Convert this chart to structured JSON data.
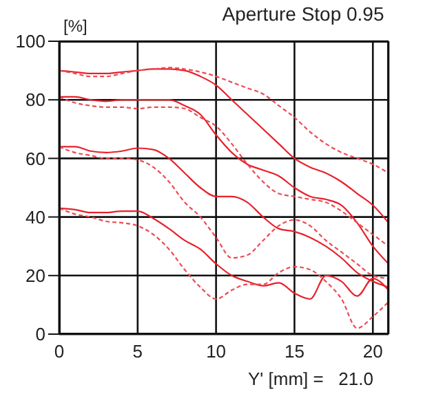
{
  "chart_data": {
    "type": "line",
    "title": "Aperture Stop 0.95",
    "ylabel": "[%]",
    "xlabel": "Y' [mm] =   21.0",
    "x": [
      0,
      1,
      2,
      3,
      4,
      5,
      6,
      7,
      8,
      9,
      10,
      11,
      12,
      13,
      14,
      15,
      16,
      17,
      18,
      19,
      20,
      21
    ],
    "series": [
      {
        "color": "#e8202a",
        "line_style": "solid",
        "values": [
          90,
          89.5,
          89,
          89,
          89.5,
          90,
          90.5,
          90.5,
          90,
          88,
          85,
          80,
          75,
          70,
          65,
          60,
          57,
          55,
          52,
          48,
          44,
          38
        ]
      },
      {
        "color": "#ec4a52",
        "line_style": "dashed",
        "values": [
          90,
          89,
          88,
          88,
          89,
          90,
          90.5,
          91,
          90.5,
          89.5,
          88,
          86,
          84,
          82,
          78,
          74,
          69,
          65,
          62,
          60,
          58,
          55
        ]
      },
      {
        "color": "#e8202a",
        "line_style": "solid",
        "values": [
          81,
          81,
          80,
          79.5,
          80,
          80,
          80,
          80,
          78,
          75,
          68,
          62,
          58,
          56,
          54,
          50,
          47,
          46,
          44,
          38,
          30,
          24
        ]
      },
      {
        "color": "#ec4a52",
        "line_style": "dashed",
        "values": [
          81,
          79,
          78,
          77.5,
          77.5,
          77,
          77.5,
          77.5,
          77,
          74,
          71,
          65,
          58,
          52,
          48,
          47,
          46,
          45,
          42,
          38,
          34,
          30
        ]
      },
      {
        "color": "#e8202a",
        "line_style": "solid",
        "values": [
          64,
          64,
          62.5,
          62,
          62.5,
          63.5,
          63,
          60,
          55,
          50,
          47,
          47,
          45,
          40,
          36,
          35,
          33,
          30,
          26,
          21,
          18,
          16
        ]
      },
      {
        "color": "#ec4a52",
        "line_style": "dashed",
        "values": [
          64,
          62,
          61,
          60,
          60,
          59.5,
          57,
          52,
          45,
          40,
          33,
          26,
          27,
          32,
          37,
          39,
          37,
          32,
          28,
          24,
          20,
          19
        ]
      },
      {
        "color": "#e8202a",
        "line_style": "solid",
        "values": [
          43,
          42.5,
          41.5,
          41.5,
          42,
          42,
          39.5,
          36,
          32,
          29,
          24,
          20,
          18,
          16.5,
          17.5,
          14,
          12,
          20,
          18,
          13,
          19,
          15
        ]
      },
      {
        "color": "#ec4a52",
        "line_style": "dashed",
        "values": [
          43,
          41,
          40,
          38.5,
          38,
          37,
          34,
          29,
          22,
          16,
          12,
          15,
          17,
          17,
          21,
          23,
          22,
          18,
          12,
          2,
          6,
          11
        ]
      }
    ],
    "xlim": [
      0,
      21
    ],
    "xticks": [
      0,
      5,
      10,
      15,
      20
    ],
    "ylim": [
      0,
      100
    ],
    "yticks": [
      0,
      20,
      40,
      60,
      80,
      100
    ],
    "grid": true,
    "marker": "none"
  }
}
